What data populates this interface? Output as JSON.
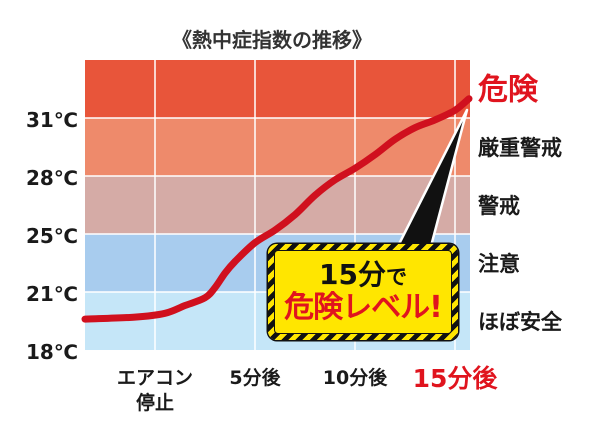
{
  "chart_data": {
    "type": "line",
    "title": "《熱中症指数の推移》",
    "xlim": [
      -3.5,
      15.75
    ],
    "ylim": [
      18,
      34
    ],
    "grid": true,
    "x_ticks": [
      {
        "value": 0,
        "label": [
          "エアコン",
          "停止"
        ]
      },
      {
        "value": 5,
        "label": [
          "5分後"
        ]
      },
      {
        "value": 10,
        "label": [
          "10分後"
        ]
      },
      {
        "value": 15,
        "label": [
          "15分後"
        ],
        "color": "#e0141e"
      }
    ],
    "y_ticks": [
      18,
      21,
      25,
      28,
      31
    ],
    "y_tick_labels": [
      "18℃",
      "21℃",
      "25℃",
      "28℃",
      "31℃"
    ],
    "zones": [
      {
        "label": "危険",
        "from": 31,
        "to": 34,
        "color": "#e8553a",
        "label_color": "#e0141e"
      },
      {
        "label": "厳重警戒",
        "from": 28,
        "to": 31,
        "color": "#ee8a6b",
        "label_color": "#1a1a1a"
      },
      {
        "label": "警戒",
        "from": 25,
        "to": 28,
        "color": "#d5aba6",
        "label_color": "#1a1a1a"
      },
      {
        "label": "注意",
        "from": 21,
        "to": 25,
        "color": "#a8ccee",
        "label_color": "#1a1a1a"
      },
      {
        "label": "ほぼ安全",
        "from": 18,
        "to": 21,
        "color": "#c5e6f8",
        "label_color": "#1a1a1a"
      }
    ],
    "series": [
      {
        "x": [
          -3.5,
          -1.0,
          0.5,
          1.5,
          2.5,
          3.0,
          3.5,
          4.0,
          5.0,
          6.0,
          7.0,
          8.0,
          9.0,
          10.0,
          11.0,
          12.0,
          13.0,
          14.0,
          15.0,
          15.7
        ],
        "y": [
          19.6,
          19.7,
          19.9,
          20.3,
          20.7,
          21.3,
          22.3,
          23.1,
          24.4,
          25.2,
          26.0,
          27.0,
          27.8,
          28.4,
          29.1,
          29.9,
          30.5,
          30.9,
          31.4,
          32.0
        ],
        "color": "#d0101e"
      }
    ],
    "callout": {
      "line1": "15分",
      "line1_suffix": "で",
      "line2": "危険レベル!",
      "line2_color": "#e0141e",
      "fill_color": "#ffe600"
    }
  }
}
